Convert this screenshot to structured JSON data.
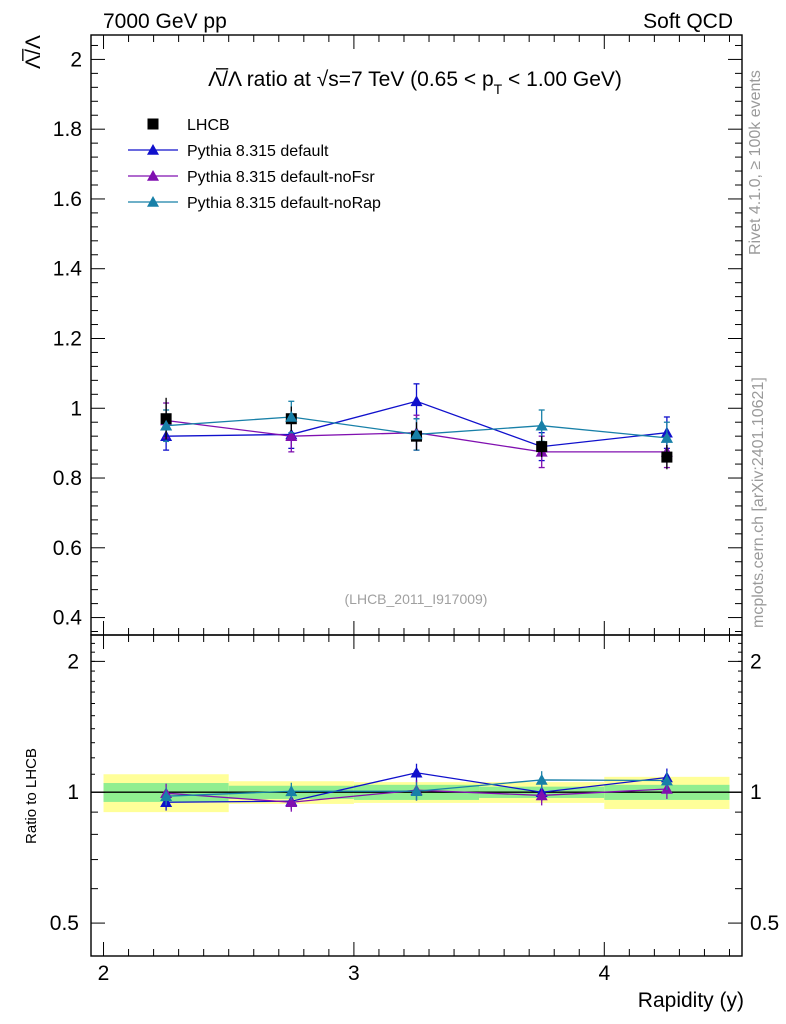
{
  "header": {
    "left": "7000 GeV pp",
    "right": "Soft QCD"
  },
  "side": {
    "rivet": "Rivet 4.1.0, ≥ 100k events",
    "mcplots": "mcplots.cern.ch [arXiv:2401.10621]"
  },
  "chart_data": {
    "type": "line",
    "title_main": "Λ̅/Λ ratio at √s=7 TeV (0.65 < p",
    "title_sub": "T",
    "title_end": " < 1.00 GeV)",
    "ylabel": "Λ̅/Λ",
    "xlabel": "Rapidity (y)",
    "ratio_ylabel": "Ratio to LHCB",
    "watermark": "(LHCB_2011_I917009)",
    "xlim": [
      1.95,
      4.55
    ],
    "ylim": [
      0.35,
      2.07
    ],
    "ratio_ylim": [
      0.42,
      2.3
    ],
    "x_ticks": [
      "2",
      "3",
      "4"
    ],
    "y_ticks": [
      "0.4",
      "0.6",
      "0.8",
      "1",
      "1.2",
      "1.4",
      "1.6",
      "1.8",
      "2"
    ],
    "ratio_y_ticks": [
      "0.5",
      "1",
      "2"
    ],
    "bins": [
      2.0,
      2.5,
      3.0,
      3.5,
      4.0,
      4.5
    ],
    "x": [
      2.25,
      2.75,
      3.25,
      3.75,
      4.25
    ],
    "legend": [
      "LHCB",
      "Pythia 8.315 default",
      "Pythia 8.315 default-noFsr",
      "Pythia 8.315 default-noRap"
    ],
    "data": {
      "name": "LHCB",
      "color": "#000000",
      "values": [
        0.97,
        0.97,
        0.92,
        0.89,
        0.86
      ],
      "errors": [
        0.06,
        0.035,
        0.04,
        0.03,
        0.035
      ]
    },
    "series": [
      {
        "name": "Pythia 8.315 default",
        "color": "#1010cc",
        "values": [
          0.92,
          0.925,
          1.02,
          0.89,
          0.93
        ],
        "errors": [
          0.04,
          0.04,
          0.05,
          0.04,
          0.045
        ]
      },
      {
        "name": "Pythia 8.315 default-noFsr",
        "color": "#8010b0",
        "values": [
          0.965,
          0.92,
          0.93,
          0.875,
          0.875
        ],
        "errors": [
          0.05,
          0.045,
          0.05,
          0.045,
          0.045
        ]
      },
      {
        "name": "Pythia 8.315 default-noRap",
        "color": "#1880a8",
        "values": [
          0.95,
          0.975,
          0.925,
          0.95,
          0.915
        ],
        "errors": [
          0.045,
          0.045,
          0.045,
          0.045,
          0.045
        ]
      }
    ],
    "ratio_band_inner": [
      0.05,
      0.035,
      0.04,
      0.03,
      0.04
    ],
    "ratio_band_outer": [
      0.1,
      0.06,
      0.055,
      0.055,
      0.085
    ]
  }
}
